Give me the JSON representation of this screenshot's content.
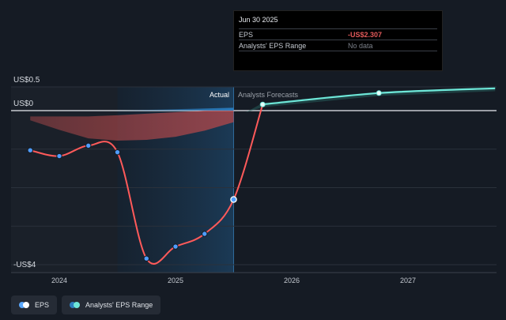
{
  "chart_data": {
    "type": "line",
    "ylabels": {
      "top": "US$0.5",
      "zero": "US$0",
      "bottom": "-US$4"
    },
    "ylim": [
      -4,
      0.5
    ],
    "x_ticks": [
      "2024",
      "2025",
      "2026",
      "2027"
    ],
    "x_tick_values": [
      2024.0,
      2025.0,
      2026.0,
      2027.0
    ],
    "region_labels": {
      "actual": "Actual",
      "forecast": "Analysts Forecasts"
    },
    "series": [
      {
        "name": "EPS",
        "color": "#ff5a5a",
        "x": [
          2023.75,
          2024.0,
          2024.25,
          2024.5,
          2024.75,
          2025.0,
          2025.25,
          2025.5
        ],
        "values": [
          -1.03,
          -1.18,
          -0.91,
          -1.08,
          -3.84,
          -3.53,
          -3.2,
          -2.307
        ]
      },
      {
        "name": "EPS forecast",
        "color": "#6ee7d8",
        "x": [
          2025.75,
          2026.75,
          2027.75
        ],
        "values": [
          0.13,
          0.37,
          0.47
        ]
      }
    ],
    "range_band": {
      "x": [
        2023.75,
        2024.0,
        2024.25,
        2024.5,
        2024.75,
        2025.0,
        2025.25,
        2025.5
      ],
      "upper": [
        -0.15,
        -0.15,
        -0.15,
        -0.12,
        -0.08,
        -0.04,
        0.0,
        0.02
      ],
      "lower": [
        -0.25,
        -0.5,
        -0.72,
        -0.78,
        -0.76,
        -0.68,
        -0.52,
        -0.3
      ]
    },
    "highlight_point": {
      "x": 2025.5,
      "value": -2.307
    },
    "grid": true
  },
  "tooltip": {
    "date": "Jun 30 2025",
    "rows": [
      {
        "key": "EPS",
        "value": "-US$2.307"
      },
      {
        "key": "Analysts' EPS Range",
        "value": "No data"
      }
    ]
  },
  "legend": {
    "items": [
      {
        "label": "EPS",
        "colors": [
          "#5aa8ff",
          "#ffffff"
        ]
      },
      {
        "label": "Analysts' EPS Range",
        "colors": [
          "#2d7fbf",
          "#6ee7d8"
        ]
      }
    ]
  }
}
